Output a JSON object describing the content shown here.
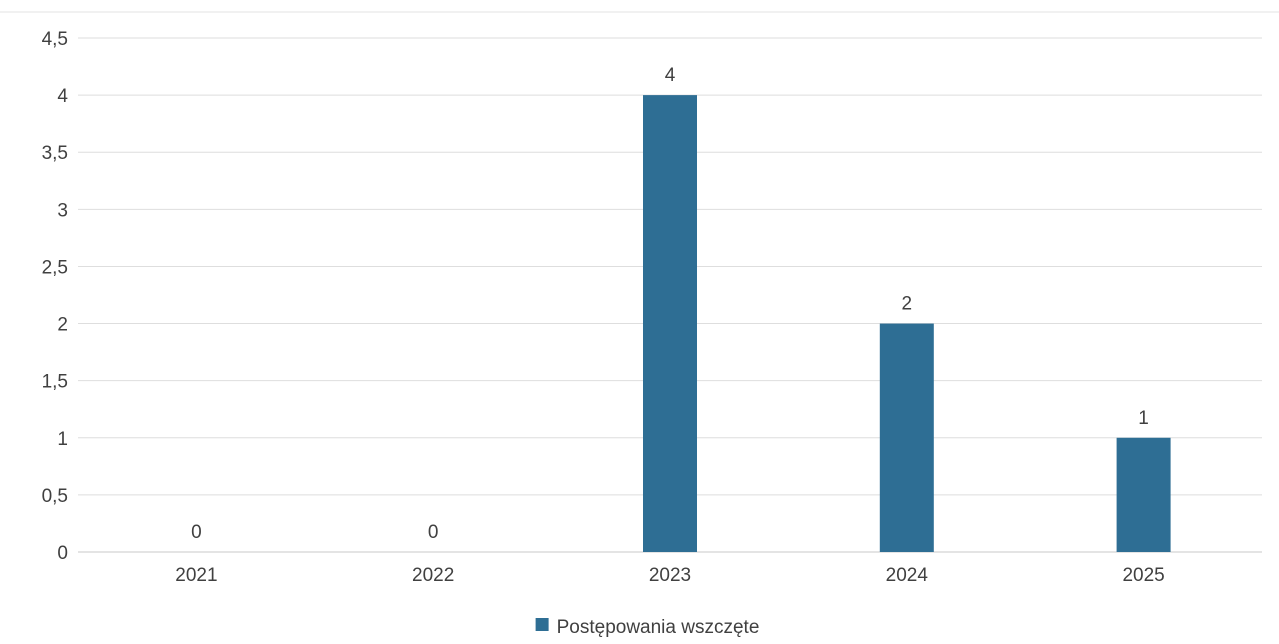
{
  "chart_data": {
    "type": "bar",
    "title": "",
    "xlabel": "",
    "ylabel": "",
    "categories": [
      "2021",
      "2022",
      "2023",
      "2024",
      "2025"
    ],
    "series": [
      {
        "name": "Postępowania wszczęte",
        "values": [
          0,
          0,
          4,
          2,
          1
        ],
        "color": "#2e6e94"
      }
    ],
    "data_labels": [
      "0",
      "0",
      "4",
      "2",
      "1"
    ],
    "ylim": [
      0,
      4.5
    ],
    "y_ticks": [
      "0",
      "0,5",
      "1",
      "1,5",
      "2",
      "2,5",
      "3",
      "3,5",
      "4",
      "4,5"
    ],
    "grid": true,
    "legend": {
      "position": "bottom",
      "items": [
        "Postępowania wszczęte"
      ]
    }
  }
}
